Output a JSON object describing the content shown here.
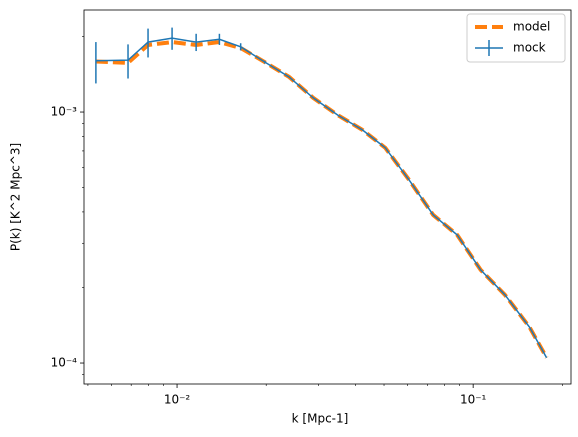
{
  "chart_data": {
    "type": "line",
    "xlabel": "k [Mpc-1]",
    "ylabel": "P(k) [K^2 Mpc^3]",
    "log_x": true,
    "log_y": true,
    "legend": "upper right",
    "x": [
      0.00532,
      0.00683,
      0.00798,
      0.00962,
      0.0116,
      0.0139,
      0.0164,
      0.0198,
      0.0239,
      0.0288,
      0.035,
      0.0422,
      0.0505,
      0.0608,
      0.0733,
      0.0883,
      0.106,
      0.128,
      0.155,
      0.177
    ],
    "series": [
      {
        "name": "model",
        "color": "#ff7f0e",
        "style": "dashed",
        "values": [
          0.00159,
          0.00157,
          0.00185,
          0.0019,
          0.00185,
          0.0019,
          0.0018,
          0.00158,
          0.00138,
          0.00114,
          0.00097,
          0.00085,
          0.00072,
          0.000536,
          0.000389,
          0.000324,
          0.000235,
          0.000187,
          0.000139,
          0.000105
        ]
      },
      {
        "name": "mock",
        "color": "#1f77b4",
        "style": "errorbar",
        "values": [
          0.0016,
          0.00161,
          0.0019,
          0.00197,
          0.0019,
          0.00195,
          0.00182,
          0.00158,
          0.00138,
          0.00114,
          0.00097,
          0.00085,
          0.00072,
          0.000536,
          0.000389,
          0.000324,
          0.000235,
          0.000187,
          0.000139,
          0.000105
        ],
        "errors": [
          0.0003,
          0.00025,
          0.00025,
          0.0002,
          0.00015,
          0.0001,
          6e-05,
          2e-05,
          0,
          0,
          0,
          0,
          0,
          0,
          0,
          0,
          0,
          0,
          0,
          0
        ]
      }
    ],
    "xlim": [
      0.00485,
      0.214
    ],
    "ylim": [
      8.25e-05,
      0.00255
    ],
    "xticks": [
      {
        "value": 0.01,
        "label": "10⁻²"
      },
      {
        "value": 0.1,
        "label": "10⁻¹"
      }
    ],
    "yticks": [
      {
        "value": 0.0001,
        "label": "10⁻⁴"
      },
      {
        "value": 0.001,
        "label": "10⁻³"
      }
    ]
  }
}
